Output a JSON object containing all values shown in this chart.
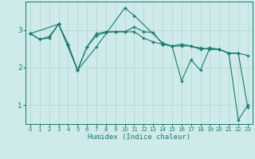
{
  "xlabel": "Humidex (Indice chaleur)",
  "background_color": "#ceeaea",
  "line_color": "#1a7a6e",
  "grid_color": "#b8d8d8",
  "xlim": [
    -0.5,
    23.5
  ],
  "ylim": [
    0.5,
    3.75
  ],
  "yticks": [
    1,
    2,
    3
  ],
  "xticks": [
    0,
    1,
    2,
    3,
    4,
    5,
    6,
    7,
    8,
    9,
    10,
    11,
    12,
    13,
    14,
    15,
    16,
    17,
    18,
    19,
    20,
    21,
    22,
    23
  ],
  "series1_x": [
    0,
    1,
    2,
    3,
    4,
    5,
    6,
    7,
    8,
    9,
    10,
    11,
    12,
    13,
    14,
    15,
    16,
    17,
    18,
    19,
    20,
    21,
    22,
    23
  ],
  "series1_y": [
    2.9,
    2.75,
    2.78,
    3.15,
    2.62,
    1.93,
    2.55,
    2.85,
    2.93,
    2.95,
    2.95,
    2.95,
    2.78,
    2.68,
    2.62,
    2.57,
    2.62,
    2.57,
    2.52,
    2.48,
    2.48,
    2.38,
    2.38,
    2.32
  ],
  "series2_x": [
    0,
    3,
    5,
    7,
    10,
    11,
    14,
    15,
    16,
    17,
    18,
    19,
    20,
    21,
    22,
    23
  ],
  "series2_y": [
    2.9,
    3.15,
    1.93,
    2.55,
    3.58,
    3.38,
    2.65,
    2.57,
    1.65,
    2.2,
    1.93,
    2.52,
    2.48,
    2.38,
    2.38,
    0.95
  ],
  "series3_x": [
    0,
    1,
    2,
    3,
    4,
    5,
    6,
    7,
    8,
    9,
    10,
    11,
    12,
    13,
    14,
    15,
    16,
    17,
    18,
    19,
    20,
    21,
    22,
    23
  ],
  "series3_y": [
    2.9,
    2.75,
    2.82,
    3.15,
    2.62,
    1.93,
    2.55,
    2.9,
    2.95,
    2.95,
    2.95,
    3.08,
    2.95,
    2.93,
    2.62,
    2.57,
    2.57,
    2.57,
    2.48,
    2.52,
    2.48,
    2.38,
    0.6,
    1.0
  ]
}
